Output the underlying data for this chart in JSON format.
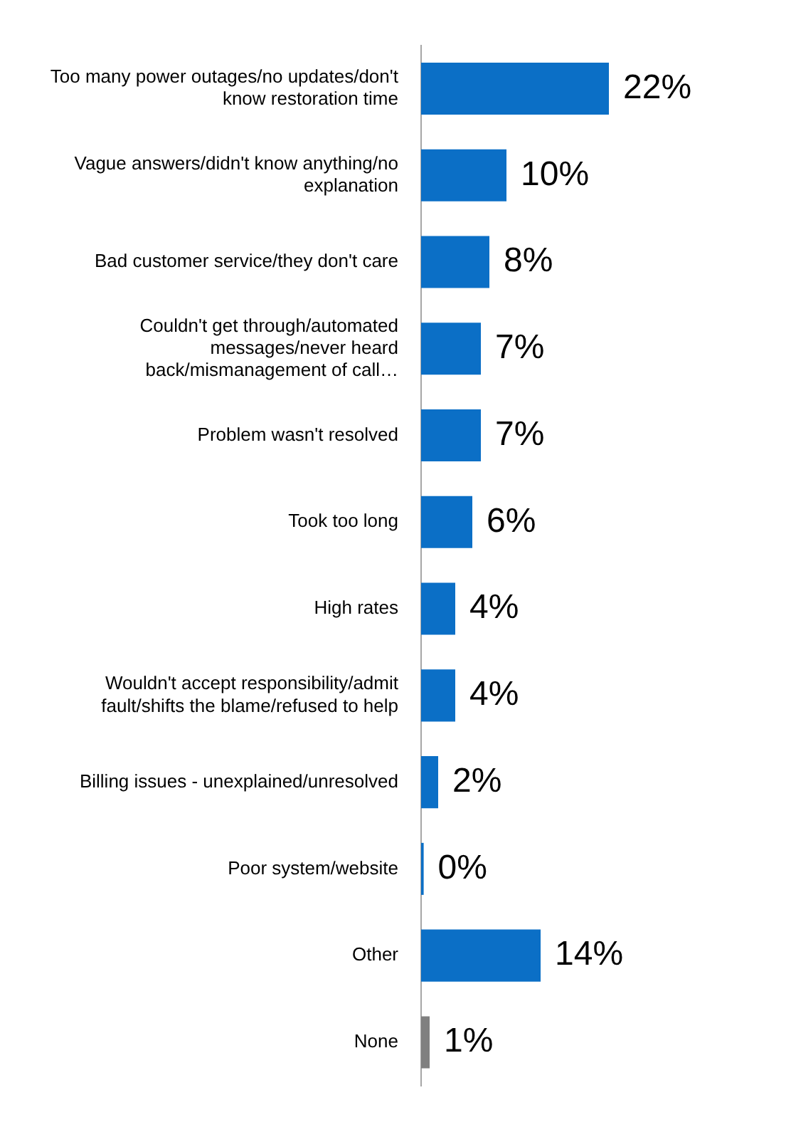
{
  "chart_data": {
    "type": "bar",
    "orientation": "horizontal",
    "categories": [
      "Too many power outages/no updates/don't know restoration time",
      "Vague answers/didn't know anything/no explanation",
      "Bad customer service/they don't care",
      "Couldn't get through/automated messages/never heard back/mismanagement of call…",
      "Problem wasn't resolved",
      "Took too long",
      "High rates",
      "Wouldn't accept responsibility/admit fault/shifts the blame/refused to help",
      "Billing issues - unexplained/unresolved",
      "Poor system/website",
      "Other",
      "None"
    ],
    "values": [
      22,
      10,
      8,
      7,
      7,
      6,
      4,
      4,
      2,
      0.3,
      14,
      1
    ],
    "colors": [
      "#0b6fc6",
      "#0b6fc6",
      "#0b6fc6",
      "#0b6fc6",
      "#0b6fc6",
      "#0b6fc6",
      "#0b6fc6",
      "#0b6fc6",
      "#0b6fc6",
      "#0b6fc6",
      "#0b6fc6",
      "#808080"
    ],
    "value_labels": [
      "22%",
      "10%",
      "8%",
      "7%",
      "7%",
      "6%",
      "4%",
      "4%",
      "2%",
      "0%",
      "14%",
      "1%"
    ],
    "tick_labels": "y",
    "legend": false
  }
}
